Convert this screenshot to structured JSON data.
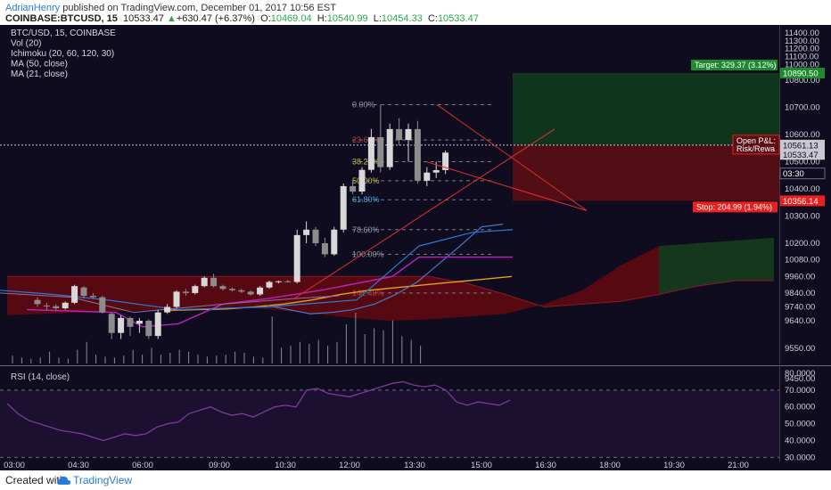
{
  "header": {
    "author": "AdrianHenry",
    "published": "published on TradingView.com, December 01, 2017 10:56 EST",
    "symbol": "COINBASE:BTCUSD, 15",
    "last": "10533.47",
    "change": "+630.47 (+6.37%)",
    "o_label": "O:",
    "o_value": "10469.04",
    "h_label": "H:",
    "h_value": "10540.99",
    "l_label": "L:",
    "l_value": "10454.33",
    "c_label": "C:",
    "c_value": "10533.47"
  },
  "legend": [
    "BTC/USD, 15, COINBASE",
    "Vol (20)",
    "Ichimoku (20, 60, 120, 30)",
    "MA (50, close)",
    "MA (21, close)"
  ],
  "rsi_title": "RSI (14, close)",
  "footer": {
    "created": "Created with",
    "brand": "TradingView"
  },
  "colors": {
    "background": "#0e0c1e",
    "up": "#d8d8d8",
    "down": "#8c8c8c",
    "cloud": "#5c0a12",
    "cloud_green": "#163a1c",
    "ma50": "#e0a020",
    "target": "#1e8a2e",
    "stop": "#e82020",
    "rsi": "#7a3b9a",
    "fib": "#2a7bd5"
  },
  "chart_data": [
    {
      "type": "candlestick",
      "title": "BTC/USD, 15, COINBASE",
      "ylim": [
        9380,
        11430
      ],
      "y_ticks": [
        "11400.00",
        "11300.00",
        "11200.00",
        "11100.00",
        "11000.00",
        "10900.00",
        "10800.00",
        "10700.00",
        "10600.00",
        "10500.00",
        "10400.00",
        "10300.00",
        "10200.00",
        "10080.00",
        "9960.00",
        "9840.00",
        "9740.00",
        "9640.00",
        "9550.00",
        "9450.00"
      ],
      "x_ticks": [
        "03:00",
        "04:30",
        "06:00",
        "09:00",
        "10:30",
        "12:00",
        "13:30",
        "15:00",
        "16:30",
        "18:00",
        "19:30",
        "21:00"
      ],
      "candles": [
        {
          "o": 9790,
          "h": 9810,
          "l": 9740,
          "c": 9760
        },
        {
          "o": 9750,
          "h": 9770,
          "l": 9720,
          "c": 9745
        },
        {
          "o": 9745,
          "h": 9760,
          "l": 9715,
          "c": 9730
        },
        {
          "o": 9730,
          "h": 9780,
          "l": 9720,
          "c": 9770
        },
        {
          "o": 9770,
          "h": 9900,
          "l": 9760,
          "c": 9890
        },
        {
          "o": 9880,
          "h": 9890,
          "l": 9800,
          "c": 9820
        },
        {
          "o": 9820,
          "h": 9840,
          "l": 9800,
          "c": 9810
        },
        {
          "o": 9810,
          "h": 9820,
          "l": 9690,
          "c": 9700
        },
        {
          "o": 9690,
          "h": 9700,
          "l": 9580,
          "c": 9600
        },
        {
          "o": 9600,
          "h": 9680,
          "l": 9580,
          "c": 9660
        },
        {
          "o": 9660,
          "h": 9670,
          "l": 9590,
          "c": 9620
        },
        {
          "o": 9630,
          "h": 9660,
          "l": 9600,
          "c": 9640
        },
        {
          "o": 9640,
          "h": 9650,
          "l": 9580,
          "c": 9590
        },
        {
          "o": 9590,
          "h": 9720,
          "l": 9580,
          "c": 9700
        },
        {
          "o": 9700,
          "h": 9760,
          "l": 9690,
          "c": 9740
        },
        {
          "o": 9740,
          "h": 9860,
          "l": 9730,
          "c": 9850
        },
        {
          "o": 9850,
          "h": 9870,
          "l": 9820,
          "c": 9840
        },
        {
          "o": 9840,
          "h": 9900,
          "l": 9830,
          "c": 9890
        },
        {
          "o": 9890,
          "h": 9960,
          "l": 9880,
          "c": 9950
        },
        {
          "o": 9950,
          "h": 9980,
          "l": 9880,
          "c": 9890
        },
        {
          "o": 9890,
          "h": 9900,
          "l": 9860,
          "c": 9870
        },
        {
          "o": 9870,
          "h": 9880,
          "l": 9850,
          "c": 9860
        },
        {
          "o": 9860,
          "h": 9870,
          "l": 9840,
          "c": 9850
        },
        {
          "o": 9850,
          "h": 9860,
          "l": 9820,
          "c": 9830
        },
        {
          "o": 9830,
          "h": 9890,
          "l": 9820,
          "c": 9880
        },
        {
          "o": 9880,
          "h": 9930,
          "l": 9870,
          "c": 9920
        },
        {
          "o": 9920,
          "h": 9930,
          "l": 9910,
          "c": 9925
        },
        {
          "o": 9925,
          "h": 9935,
          "l": 9915,
          "c": 9920
        },
        {
          "o": 9920,
          "h": 10250,
          "l": 9910,
          "c": 10230
        },
        {
          "o": 10230,
          "h": 10280,
          "l": 10200,
          "c": 10250
        },
        {
          "o": 10250,
          "h": 10260,
          "l": 10180,
          "c": 10200
        },
        {
          "o": 10200,
          "h": 10220,
          "l": 10100,
          "c": 10120
        },
        {
          "o": 10120,
          "h": 10260,
          "l": 10110,
          "c": 10250
        },
        {
          "o": 10250,
          "h": 10420,
          "l": 10240,
          "c": 10410
        },
        {
          "o": 10410,
          "h": 10430,
          "l": 10380,
          "c": 10390
        },
        {
          "o": 10390,
          "h": 10480,
          "l": 10380,
          "c": 10470
        },
        {
          "o": 10470,
          "h": 10620,
          "l": 10460,
          "c": 10590
        },
        {
          "o": 10590,
          "h": 10710,
          "l": 10460,
          "c": 10480
        },
        {
          "o": 10480,
          "h": 10640,
          "l": 10470,
          "c": 10620
        },
        {
          "o": 10620,
          "h": 10660,
          "l": 10560,
          "c": 10580
        },
        {
          "o": 10580,
          "h": 10640,
          "l": 10500,
          "c": 10620
        },
        {
          "o": 10620,
          "h": 10650,
          "l": 10420,
          "c": 10430
        },
        {
          "o": 10430,
          "h": 10480,
          "l": 10410,
          "c": 10460
        },
        {
          "o": 10460,
          "h": 10500,
          "l": 10440,
          "c": 10469
        },
        {
          "o": 10469.04,
          "h": 10540.99,
          "l": 10454.33,
          "c": 10533.47
        }
      ],
      "volume": [
        8,
        6,
        5,
        6,
        12,
        6,
        5,
        14,
        22,
        9,
        7,
        6,
        8,
        14,
        9,
        16,
        9,
        11,
        14,
        12,
        9,
        7,
        8,
        9,
        12,
        11,
        7,
        6,
        48,
        16,
        18,
        22,
        20,
        24,
        18,
        22,
        40,
        52,
        30,
        36,
        34,
        44,
        28,
        24,
        18
      ],
      "ichimoku_cloud": {
        "span_a": [
          9960,
          9960,
          9960,
          9960,
          9960,
          9960,
          9960,
          9960,
          9960,
          9960,
          9960,
          9960,
          9910,
          9830,
          9740,
          9760,
          9780,
          9830,
          9890,
          9930,
          9930
        ],
        "span_b": [
          9680,
          9690,
          9700,
          9710,
          9720,
          9730,
          9740,
          9720,
          9690,
          9660,
          9640,
          9650,
          9670,
          9690,
          9760,
          9860,
          10040,
          10180,
          10200,
          10210,
          10220
        ]
      },
      "ma50": [
        9715,
        9720,
        9725,
        9740,
        9760,
        9790,
        9830,
        9860,
        9880,
        9900,
        9920,
        9940,
        9960
      ],
      "ma21": [
        9750,
        9720,
        9690,
        9700,
        9720,
        9760,
        9830,
        9920,
        10050,
        10180,
        10260,
        10270
      ],
      "fib_levels": [
        {
          "label": "0.00%",
          "price": 10710
        },
        {
          "label": "23.60%",
          "price": 10580
        },
        {
          "label": "38.20%",
          "price": 10500
        },
        {
          "label": "50.00%",
          "price": 10430
        },
        {
          "label": "61.80%",
          "price": 10360
        },
        {
          "label": "78.60%",
          "price": 10250
        },
        {
          "label": "100.00%",
          "price": 10120
        },
        {
          "label": "141.40%",
          "price": 9840
        }
      ],
      "position": {
        "entry": 10561.13,
        "target": 10890.5,
        "stop": 10356.14,
        "target_label": "Target: 329.37 (3.12%)",
        "stop_label": "Stop: 204.99 (1.94%)",
        "pl_label": "Open P&L:",
        "rr_label": "Risk/Rewa"
      },
      "price_tags": [
        {
          "text": "10890.50",
          "kind": "target",
          "price": 10890.5
        },
        {
          "text": "10561.13",
          "kind": "entry",
          "price": 10561.13
        },
        {
          "text": "10533.47",
          "kind": "last",
          "price": 10533.47
        },
        {
          "text": "03:30",
          "kind": "timer",
          "price": 10470
        },
        {
          "text": "10356.14",
          "kind": "stop",
          "price": 10356.14
        }
      ]
    },
    {
      "type": "line",
      "title": "RSI (14, close)",
      "ylim": [
        27,
        82
      ],
      "y_ticks": [
        "80.0000",
        "70.0000",
        "60.0000",
        "50.0000",
        "40.0000",
        "30.0000"
      ],
      "bands": [
        70,
        30
      ],
      "values": [
        62,
        56,
        52,
        50,
        48,
        46,
        45,
        44,
        42,
        40,
        42,
        44,
        43,
        44,
        48,
        50,
        51,
        56,
        58,
        60,
        57,
        55,
        56,
        54,
        57,
        60,
        61,
        60,
        70,
        71,
        68,
        67,
        66,
        68,
        70,
        72,
        74,
        75,
        73,
        72,
        73,
        70,
        63,
        61,
        63,
        62,
        61,
        64
      ]
    }
  ]
}
